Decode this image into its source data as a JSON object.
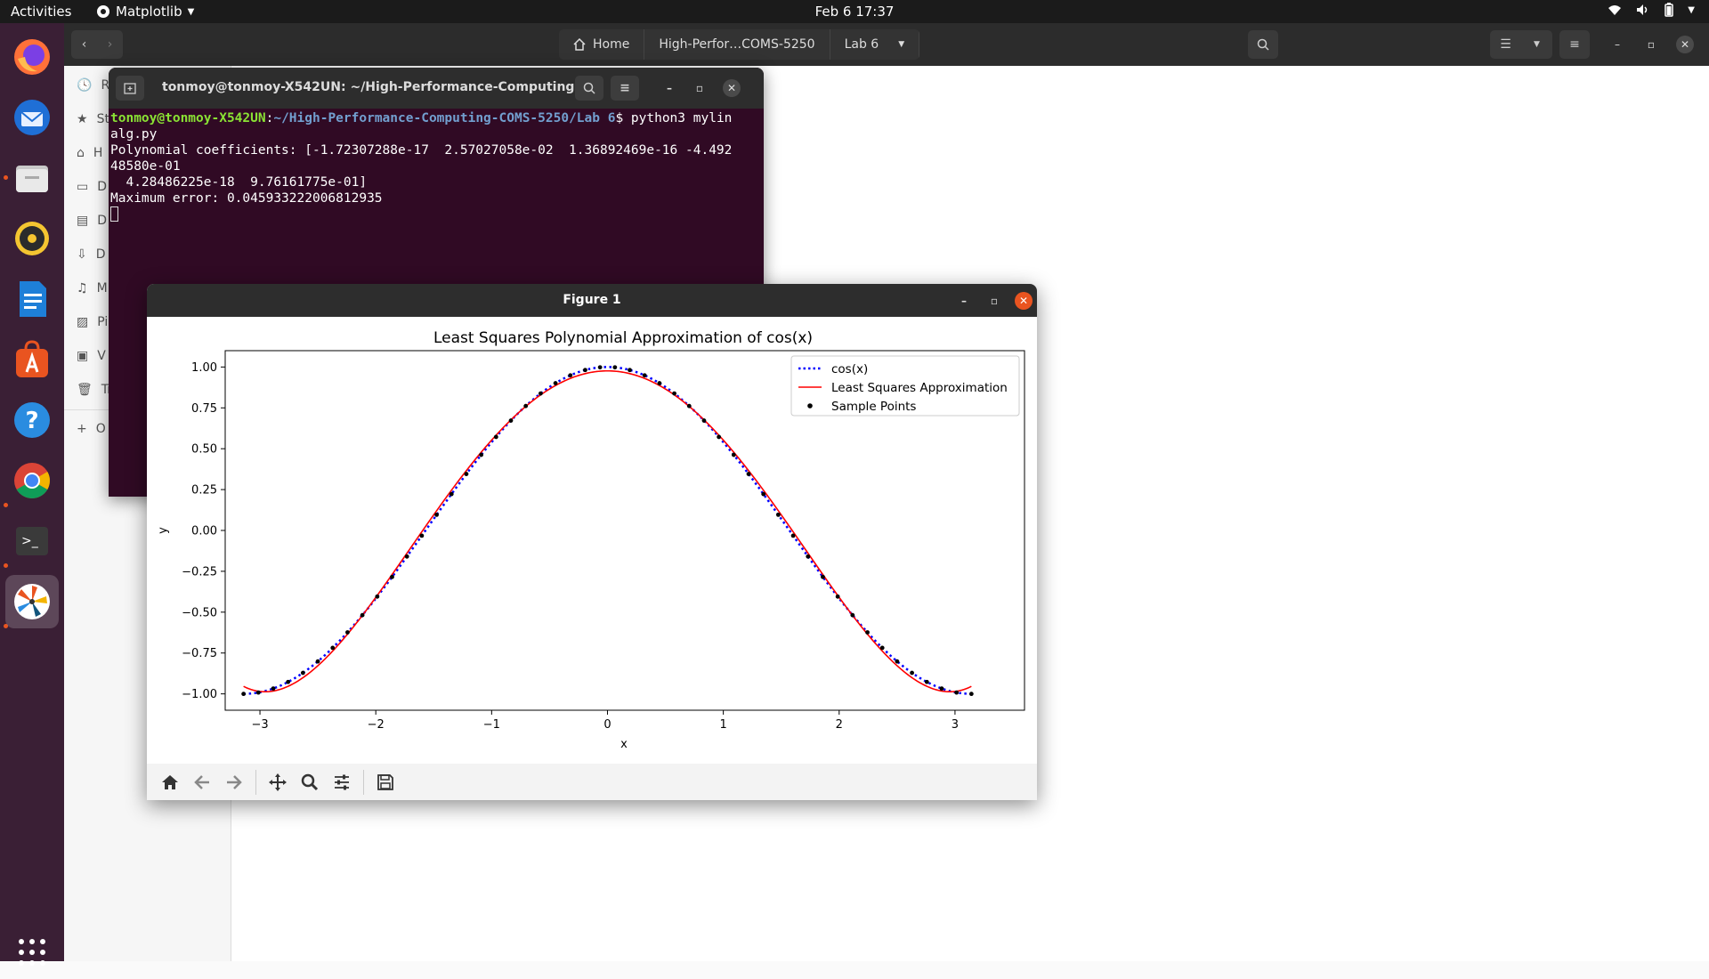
{
  "topbar": {
    "activities": "Activities",
    "app_name": "Matplotlib",
    "clock": "Feb 6  17:37"
  },
  "dock": {
    "items": [
      "Firefox",
      "Thunderbird",
      "Files",
      "Rhythmbox",
      "LibreOffice Writer",
      "Ubuntu Software",
      "Help",
      "Google Chrome",
      "Terminal",
      "Matplotlib",
      "Show Applications"
    ]
  },
  "files": {
    "path": [
      "Home",
      "High-Perfor…COMS-5250",
      "Lab 6"
    ],
    "sidebar": [
      "R",
      "St",
      "H",
      "D",
      "D",
      "D",
      "M",
      "Pi",
      "V",
      "Tr",
      "O"
    ]
  },
  "terminal": {
    "title": "tonmoy@tonmoy-X542UN: ~/High-Performance-Computing-C...",
    "prompt_user": "tonmoy@tonmoy-X542UN",
    "prompt_sep": ":",
    "prompt_path": "~/High-Performance-Computing-COMS-5250/Lab 6",
    "command": "$ python3 mylin",
    "line2": "alg.py",
    "line3": "Polynomial coefficients: [-1.72307288e-17  2.57027058e-02  1.36892469e-16 -4.492",
    "line4": "48580e-01",
    "line5": "  4.28486225e-18  9.76161775e-01]",
    "line6": "Maximum error: 0.045933222006812935"
  },
  "figure": {
    "window_title": "Figure 1"
  },
  "chart_data": {
    "type": "line",
    "title": "Least Squares Polynomial Approximation of cos(x)",
    "xlabel": "x",
    "ylabel": "y",
    "xlim": [
      -3.3,
      3.6
    ],
    "ylim": [
      -1.1,
      1.1
    ],
    "xticks": [
      -3,
      -2,
      -1,
      0,
      1,
      2,
      3
    ],
    "xtick_labels": [
      "−3",
      "−2",
      "−1",
      "0",
      "1",
      "2",
      "3"
    ],
    "yticks": [
      1.0,
      0.75,
      0.5,
      0.25,
      0.0,
      -0.25,
      -0.5,
      -0.75,
      -1.0
    ],
    "ytick_labels": [
      "1.00",
      "0.75",
      "0.50",
      "0.25",
      "0.00",
      "−0.25",
      "−0.50",
      "−0.75",
      "−1.00"
    ],
    "x_range": [
      -3.14159,
      3.14159
    ],
    "coefficients": [
      -1.72307288e-17,
      0.0257027058,
      1.36892469e-16,
      -0.44924858,
      4.28486225e-18,
      0.976161775
    ],
    "sample_count": 50,
    "series": [
      {
        "name": "cos(x)",
        "style": "dotted",
        "color": "#0000ff"
      },
      {
        "name": "Least Squares Approximation",
        "style": "solid",
        "color": "#ff0000"
      },
      {
        "name": "Sample Points",
        "style": "scatter",
        "color": "#000000"
      }
    ],
    "legend_position": "top-right"
  }
}
